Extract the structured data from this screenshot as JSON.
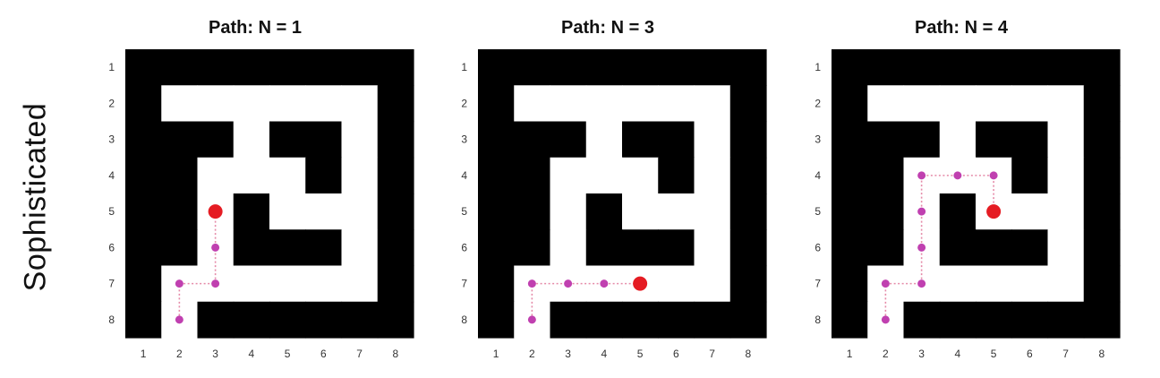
{
  "row_label": "Sophisticated",
  "grid": {
    "x_ticks": [
      "1",
      "2",
      "3",
      "4",
      "5",
      "6",
      "7",
      "8"
    ],
    "y_ticks": [
      "1",
      "2",
      "3",
      "4",
      "5",
      "6",
      "7",
      "8"
    ],
    "walls": [
      [
        1,
        1,
        1,
        1,
        1,
        1,
        1,
        1
      ],
      [
        1,
        0,
        0,
        0,
        0,
        0,
        0,
        1
      ],
      [
        1,
        1,
        1,
        0,
        1,
        1,
        0,
        1
      ],
      [
        1,
        1,
        0,
        0,
        0,
        1,
        0,
        1
      ],
      [
        1,
        1,
        0,
        1,
        0,
        0,
        0,
        1
      ],
      [
        1,
        1,
        0,
        1,
        1,
        1,
        0,
        1
      ],
      [
        1,
        0,
        0,
        0,
        0,
        0,
        0,
        1
      ],
      [
        1,
        0,
        1,
        1,
        1,
        1,
        1,
        1
      ]
    ]
  },
  "colors": {
    "wall": "#000000",
    "open": "#ffffff",
    "path": "#c040b0",
    "path_line": "#e58aa8",
    "current": "#e51c23"
  },
  "panels": [
    {
      "title": "Path: N = 1",
      "path": [
        [
          2,
          8
        ],
        [
          2,
          7
        ],
        [
          3,
          7
        ],
        [
          3,
          6
        ],
        [
          3,
          5
        ]
      ]
    },
    {
      "title": "Path: N = 3",
      "path": [
        [
          2,
          8
        ],
        [
          2,
          7
        ],
        [
          3,
          7
        ],
        [
          4,
          7
        ],
        [
          5,
          7
        ]
      ]
    },
    {
      "title": "Path: N = 4",
      "path": [
        [
          2,
          8
        ],
        [
          2,
          7
        ],
        [
          3,
          7
        ],
        [
          3,
          6
        ],
        [
          3,
          5
        ],
        [
          3,
          4
        ],
        [
          4,
          4
        ],
        [
          5,
          4
        ],
        [
          5,
          5
        ]
      ]
    }
  ]
}
